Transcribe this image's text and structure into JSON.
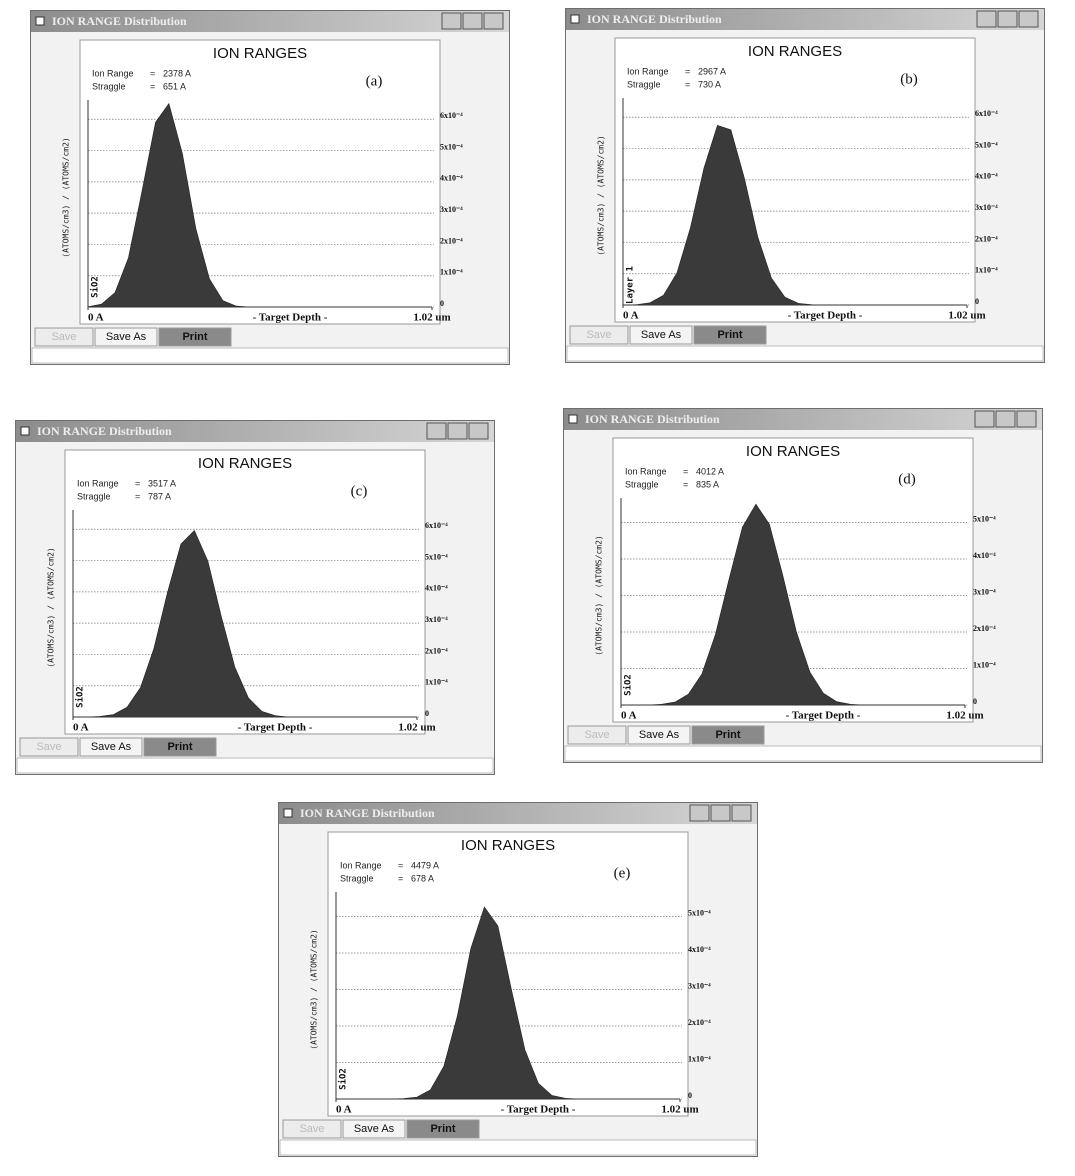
{
  "windows": [
    {
      "title": "ION RANGE Distribution",
      "panel_label": "(a)",
      "buttons": [
        "Save",
        "Save As",
        "Print"
      ],
      "chart": {
        "type": "area",
        "title": "ION RANGES",
        "stats": [
          {
            "label": "Ion Range",
            "sep": "=",
            "value": "2378 A"
          },
          {
            "label": "Straggle",
            "sep": "=",
            "value": "651 A"
          }
        ],
        "y_label": "(ATOMS/cm3) / (ATOMS/cm2)",
        "x_label": "- Target Depth -",
        "layer_label": "SiO2",
        "color": "#3a3a3a",
        "xlim": [
          0,
          10200
        ],
        "xticks": [
          {
            "value": 0,
            "label": "0 A"
          },
          {
            "value": 10200,
            "label": "1.02 um"
          }
        ],
        "ylim": [
          0,
          0.0007
        ],
        "yticks": [
          0,
          {
            "value": 0.0001,
            "label": "1x10⁻⁴"
          },
          {
            "value": 0.0002,
            "label": "2x10⁻⁴"
          },
          {
            "value": 0.0003,
            "label": "3x10⁻⁴"
          },
          {
            "value": 0.0004,
            "label": "4x10⁻⁴"
          },
          {
            "value": 0.0005,
            "label": "5x10⁻⁴"
          },
          {
            "value": 0.0006,
            "label": "6x10⁻⁴"
          }
        ],
        "x": [
          0,
          400,
          800,
          1200,
          1600,
          2000,
          2400,
          2800,
          3200,
          3600,
          4000,
          4400,
          4800,
          5200,
          5600,
          6000,
          6400,
          6800,
          7200,
          10000
        ],
        "values": [
          1e-06,
          9e-06,
          4.6e-05,
          0.000158,
          0.00037,
          0.00059,
          0.00065,
          0.00049,
          0.00025,
          9e-05,
          2e-05,
          3e-06,
          0,
          0,
          0,
          0,
          0,
          0,
          0,
          0
        ]
      }
    },
    {
      "title": "ION RANGE Distribution",
      "panel_label": "(b)",
      "buttons": [
        "Save",
        "Save As",
        "Print"
      ],
      "chart": {
        "type": "area",
        "title": "ION RANGES",
        "stats": [
          {
            "label": "Ion Range",
            "sep": "=",
            "value": "2967 A"
          },
          {
            "label": "Straggle",
            "sep": "=",
            "value": "730 A"
          }
        ],
        "y_label": "(ATOMS/cm3) / (ATOMS/cm2)",
        "x_label": "- Target Depth -",
        "layer_label": "Layer 1",
        "color": "#3a3a3a",
        "xlim": [
          0,
          10200
        ],
        "xticks": [
          {
            "value": 0,
            "label": "0 A"
          },
          {
            "value": 10200,
            "label": "1.02 um"
          }
        ],
        "ylim": [
          0,
          0.0007
        ],
        "yticks": [
          0,
          {
            "value": 0.0001,
            "label": "1x10⁻⁴"
          },
          {
            "value": 0.0002,
            "label": "2x10⁻⁴"
          },
          {
            "value": 0.0003,
            "label": "3x10⁻⁴"
          },
          {
            "value": 0.0004,
            "label": "4x10⁻⁴"
          },
          {
            "value": 0.0005,
            "label": "5x10⁻⁴"
          },
          {
            "value": 0.0006,
            "label": "6x10⁻⁴"
          }
        ],
        "x": [
          0,
          400,
          800,
          1200,
          1600,
          2000,
          2400,
          2800,
          3200,
          3600,
          4000,
          4400,
          4800,
          5200,
          5600,
          6000,
          6400,
          6800,
          7200,
          10000
        ],
        "values": [
          0,
          1e-06,
          7e-06,
          3.1e-05,
          0.000103,
          0.000248,
          0.000437,
          0.000574,
          0.00056,
          0.000405,
          0.000216,
          8.6e-05,
          2.5e-05,
          5e-06,
          1e-06,
          0,
          0,
          0,
          0,
          0
        ]
      }
    },
    {
      "title": "ION RANGE Distribution",
      "panel_label": "(c)",
      "buttons": [
        "Save",
        "Save As",
        "Print"
      ],
      "chart": {
        "type": "area",
        "title": "ION RANGES",
        "stats": [
          {
            "label": "Ion Range",
            "sep": "=",
            "value": "3517 A"
          },
          {
            "label": "Straggle",
            "sep": "=",
            "value": "787 A"
          }
        ],
        "y_label": "(ATOMS/cm3) / (ATOMS/cm2)",
        "x_label": "- Target Depth -",
        "layer_label": "SiO2",
        "color": "#3a3a3a",
        "xlim": [
          0,
          10200
        ],
        "xticks": [
          {
            "value": 0,
            "label": "0 A"
          },
          {
            "value": 10200,
            "label": "1.02 um"
          }
        ],
        "ylim": [
          0,
          0.0007
        ],
        "yticks": [
          0,
          {
            "value": 0.0001,
            "label": "1x10⁻⁴"
          },
          {
            "value": 0.0002,
            "label": "2x10⁻⁴"
          },
          {
            "value": 0.0003,
            "label": "3x10⁻⁴"
          },
          {
            "value": 0.0004,
            "label": "4x10⁻⁴"
          },
          {
            "value": 0.0005,
            "label": "5x10⁻⁴"
          },
          {
            "value": 0.0006,
            "label": "6x10⁻⁴"
          }
        ],
        "x": [
          0,
          400,
          800,
          1200,
          1600,
          2000,
          2400,
          2800,
          3200,
          3600,
          4000,
          4400,
          4800,
          5200,
          5600,
          6000,
          6400,
          6800,
          7200,
          10000
        ],
        "values": [
          0,
          0,
          2e-06,
          8e-06,
          3.1e-05,
          9.4e-05,
          0.000219,
          0.000397,
          0.000553,
          0.000596,
          0.000498,
          0.00032,
          0.000159,
          6.1e-05,
          1.8e-05,
          4e-06,
          0,
          0,
          0,
          0
        ]
      }
    },
    {
      "title": "ION RANGE Distribution",
      "panel_label": "(d)",
      "buttons": [
        "Save",
        "Save As",
        "Print"
      ],
      "chart": {
        "type": "area",
        "title": "ION RANGES",
        "stats": [
          {
            "label": "Ion Range",
            "sep": "=",
            "value": "4012 A"
          },
          {
            "label": "Straggle",
            "sep": "=",
            "value": "835 A"
          }
        ],
        "y_label": "(ATOMS/cm3) / (ATOMS/cm2)",
        "x_label": "- Target Depth -",
        "layer_label": "SiO2",
        "color": "#3a3a3a",
        "xlim": [
          0,
          10200
        ],
        "xticks": [
          {
            "value": 0,
            "label": "0 A"
          },
          {
            "value": 10200,
            "label": "1.02 um"
          }
        ],
        "ylim": [
          0,
          0.0006
        ],
        "yticks": [
          0,
          {
            "value": 0.0001,
            "label": "1x10⁻⁴"
          },
          {
            "value": 0.0002,
            "label": "2x10⁻⁴"
          },
          {
            "value": 0.0003,
            "label": "3x10⁻⁴"
          },
          {
            "value": 0.0004,
            "label": "4x10⁻⁴"
          },
          {
            "value": 0.0005,
            "label": "5x10⁻⁴"
          }
        ],
        "x": [
          0,
          400,
          800,
          1200,
          1600,
          2000,
          2400,
          2800,
          3200,
          3600,
          4000,
          4400,
          4800,
          5200,
          5600,
          6000,
          6400,
          6800,
          7200,
          10000
        ],
        "values": [
          0,
          0,
          0,
          2e-06,
          8e-06,
          3e-05,
          8.5e-05,
          0.000193,
          0.000343,
          0.000487,
          0.00055,
          0.000495,
          0.000354,
          0.0002,
          9e-05,
          3.2e-05,
          9e-06,
          2e-06,
          0,
          0
        ]
      }
    },
    {
      "title": "ION RANGE Distribution",
      "panel_label": "(e)",
      "buttons": [
        "Save",
        "Save As",
        "Print"
      ],
      "chart": {
        "type": "area",
        "title": "ION RANGES",
        "stats": [
          {
            "label": "Ion Range",
            "sep": "=",
            "value": "4479 A"
          },
          {
            "label": "Straggle",
            "sep": "=",
            "value": "678 A"
          }
        ],
        "y_label": "(ATOMS/cm3) / (ATOMS/cm2)",
        "x_label": "- Target Depth -",
        "layer_label": "SiO2",
        "color": "#3a3a3a",
        "xlim": [
          0,
          10200
        ],
        "xticks": [
          {
            "value": 0,
            "label": "0 A"
          },
          {
            "value": 10200,
            "label": "1.02 um"
          }
        ],
        "ylim": [
          0,
          0.0006
        ],
        "yticks": [
          0,
          {
            "value": 0.0001,
            "label": "1x10⁻⁴"
          },
          {
            "value": 0.0002,
            "label": "2x10⁻⁴"
          },
          {
            "value": 0.0003,
            "label": "3x10⁻⁴"
          },
          {
            "value": 0.0004,
            "label": "4x10⁻⁴"
          },
          {
            "value": 0.0005,
            "label": "5x10⁻⁴"
          }
        ],
        "x": [
          0,
          400,
          800,
          1200,
          1600,
          2000,
          2400,
          2800,
          3200,
          3600,
          4000,
          4400,
          4800,
          5200,
          5600,
          6000,
          6400,
          6800,
          7200,
          10000
        ],
        "values": [
          0,
          0,
          0,
          0,
          0,
          1e-06,
          5e-06,
          2.5e-05,
          9e-05,
          0.000228,
          0.000413,
          0.000526,
          0.000474,
          0.0003,
          0.000135,
          4.3e-05,
          1e-05,
          2e-06,
          0,
          0
        ]
      }
    }
  ]
}
